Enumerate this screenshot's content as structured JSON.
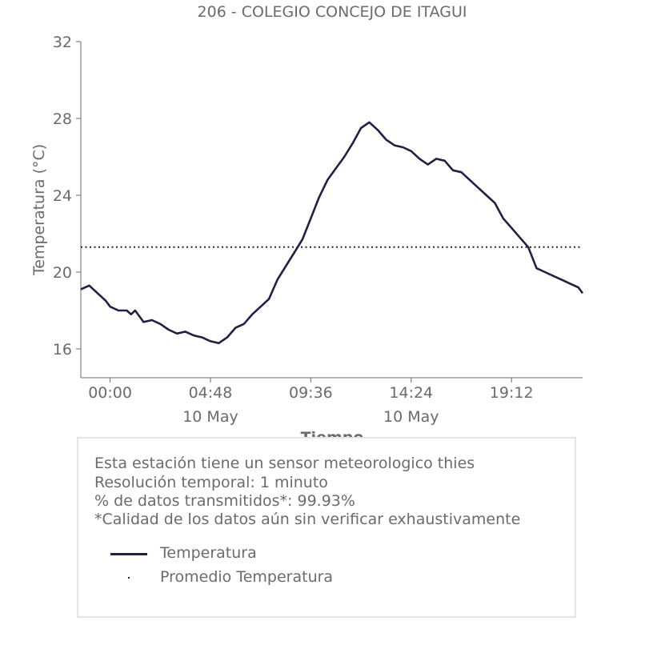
{
  "chart_data": {
    "type": "line",
    "title": "206 - COLEGIO CONCEJO DE ITAGUI",
    "xlabel": "Tiempo",
    "ylabel": "Temperatura (°C)",
    "ylim": [
      14.5,
      32
    ],
    "yticks": [
      16,
      20,
      24,
      28,
      32
    ],
    "x_unit": "hours since 00:00 10 May",
    "xlim": [
      -1.4,
      22.6
    ],
    "xticks": [
      {
        "value": 0.0,
        "label": "00:00",
        "sublabel": ""
      },
      {
        "value": 4.8,
        "label": "04:48",
        "sublabel": "10 May"
      },
      {
        "value": 9.6,
        "label": "09:36",
        "sublabel": ""
      },
      {
        "value": 14.4,
        "label": "14:24",
        "sublabel": "10 May"
      },
      {
        "value": 19.2,
        "label": "19:12",
        "sublabel": ""
      }
    ],
    "grid": false,
    "series": [
      {
        "name": "Temperatura",
        "color": "#1f2143",
        "style": "solid",
        "x": [
          -1.4,
          -1.0,
          -0.6,
          -0.2,
          0.0,
          0.4,
          0.8,
          1.0,
          1.2,
          1.6,
          2.0,
          2.4,
          2.8,
          3.2,
          3.6,
          4.0,
          4.4,
          4.8,
          5.2,
          5.6,
          6.0,
          6.4,
          6.8,
          7.2,
          7.6,
          8.0,
          8.4,
          8.8,
          9.2,
          9.6,
          10.0,
          10.4,
          10.8,
          11.2,
          11.6,
          12.0,
          12.4,
          12.8,
          13.2,
          13.6,
          14.0,
          14.4,
          14.8,
          15.2,
          15.6,
          16.0,
          16.4,
          16.8,
          17.2,
          17.6,
          18.0,
          18.4,
          18.8,
          19.2,
          19.6,
          20.0,
          20.4,
          20.8,
          21.2,
          21.6,
          22.0,
          22.4,
          22.6
        ],
        "values": [
          19.1,
          19.3,
          18.9,
          18.5,
          18.2,
          18.0,
          18.0,
          17.8,
          18.0,
          17.4,
          17.5,
          17.3,
          17.0,
          16.8,
          16.9,
          16.7,
          16.6,
          16.4,
          16.3,
          16.6,
          17.1,
          17.3,
          17.8,
          18.2,
          18.6,
          19.6,
          20.3,
          21.0,
          21.7,
          22.8,
          23.9,
          24.8,
          25.4,
          26.0,
          26.7,
          27.5,
          27.8,
          27.4,
          26.9,
          26.6,
          26.5,
          26.3,
          25.9,
          25.6,
          25.9,
          25.8,
          25.3,
          25.2,
          24.8,
          24.4,
          24.0,
          23.6,
          22.8,
          22.3,
          21.8,
          21.3,
          20.2,
          20.0,
          19.8,
          19.6,
          19.4,
          19.2,
          18.9
        ]
      },
      {
        "name": "Promedio Temperatura",
        "color": "#1f2143",
        "style": "dotted",
        "x": [
          -1.4,
          22.6
        ],
        "values": [
          21.3,
          21.3
        ]
      }
    ]
  },
  "info": {
    "line1": "Esta estación tiene un sensor meteorologico thies",
    "line2": "Resolución temporal: 1 minuto",
    "line3": "% de datos transmitidos*: 99.93%",
    "line4": "*Calidad de los datos aún sin verificar exhaustivamente"
  },
  "legend": {
    "item1": "Temperatura",
    "item2": "Promedio Temperatura"
  }
}
